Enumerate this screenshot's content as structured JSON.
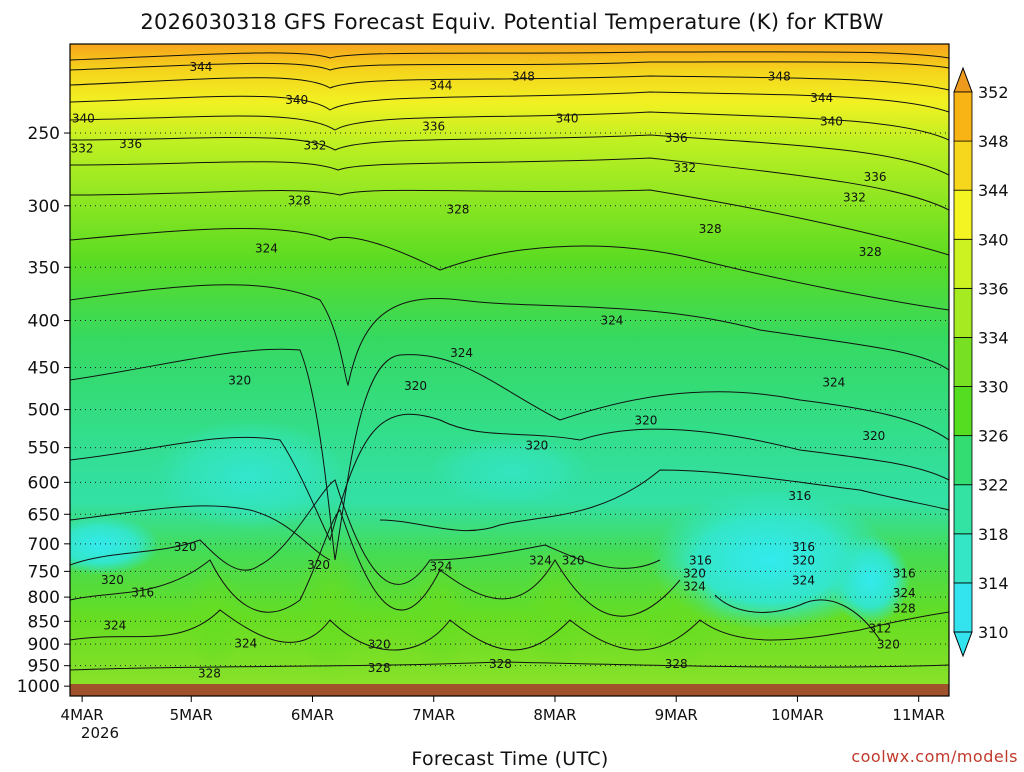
{
  "chart_data": {
    "type": "heatmap",
    "title": "2026030318 GFS Forecast Equiv. Potential Temperature (K) for KTBW",
    "xlabel": "Forecast Time (UTC)",
    "ylabel": "",
    "credit": "coolwx.com/models",
    "x_ticks": [
      "4MAR",
      "5MAR",
      "6MAR",
      "7MAR",
      "8MAR",
      "9MAR",
      "10MAR",
      "11MAR"
    ],
    "x_tick_days": [
      0.1,
      1.0,
      2.0,
      3.0,
      4.0,
      5.0,
      6.0,
      7.0
    ],
    "x_year": "2026",
    "xlim_days": [
      0,
      7.25
    ],
    "y_ticks": [
      "250",
      "300",
      "350",
      "400",
      "450",
      "500",
      "550",
      "600",
      "650",
      "700",
      "750",
      "800",
      "850",
      "900",
      "950",
      "1000"
    ],
    "y_tick_values": [
      250,
      300,
      350,
      400,
      450,
      500,
      550,
      600,
      650,
      700,
      750,
      800,
      850,
      900,
      950,
      1000
    ],
    "ylim_hpa": [
      200,
      1025
    ],
    "colorbar": {
      "levels": [
        310,
        314,
        318,
        322,
        326,
        330,
        334,
        336,
        340,
        344,
        348,
        352
      ],
      "colors": [
        "#33e4ee",
        "#35e6c6",
        "#33e3a4",
        "#33dd72",
        "#55dd22",
        "#77e022",
        "#a6ea22",
        "#ccf222",
        "#f4f422",
        "#f7d61e",
        "#f7b414",
        "#ee9a1c"
      ]
    },
    "contour_labels": [
      {
        "text": "344",
        "day": 1.08,
        "p": 212
      },
      {
        "text": "344",
        "day": 3.06,
        "p": 222
      },
      {
        "text": "348",
        "day": 3.74,
        "p": 217
      },
      {
        "text": "348",
        "day": 5.85,
        "p": 217
      },
      {
        "text": "344",
        "day": 6.2,
        "p": 229
      },
      {
        "text": "340",
        "day": 0.11,
        "p": 241
      },
      {
        "text": "340",
        "day": 1.87,
        "p": 230
      },
      {
        "text": "340",
        "day": 4.1,
        "p": 241
      },
      {
        "text": "340",
        "day": 6.28,
        "p": 243
      },
      {
        "text": "336",
        "day": 3.0,
        "p": 246
      },
      {
        "text": "336",
        "day": 0.5,
        "p": 257
      },
      {
        "text": "336",
        "day": 5.0,
        "p": 253
      },
      {
        "text": "336",
        "day": 6.64,
        "p": 279
      },
      {
        "text": "332",
        "day": 0.1,
        "p": 260
      },
      {
        "text": "332",
        "day": 2.02,
        "p": 258
      },
      {
        "text": "332",
        "day": 5.07,
        "p": 273
      },
      {
        "text": "332",
        "day": 6.47,
        "p": 294
      },
      {
        "text": "328",
        "day": 1.89,
        "p": 296
      },
      {
        "text": "328",
        "day": 3.2,
        "p": 303
      },
      {
        "text": "328",
        "day": 5.28,
        "p": 318
      },
      {
        "text": "328",
        "day": 6.6,
        "p": 337
      },
      {
        "text": "324",
        "day": 1.62,
        "p": 334
      },
      {
        "text": "324",
        "day": 4.47,
        "p": 400
      },
      {
        "text": "324",
        "day": 3.23,
        "p": 434
      },
      {
        "text": "324",
        "day": 6.3,
        "p": 467
      },
      {
        "text": "320",
        "day": 1.4,
        "p": 465
      },
      {
        "text": "320",
        "day": 2.85,
        "p": 471
      },
      {
        "text": "320",
        "day": 4.75,
        "p": 514
      },
      {
        "text": "320",
        "day": 3.85,
        "p": 547
      },
      {
        "text": "320",
        "day": 6.63,
        "p": 534
      },
      {
        "text": "316",
        "day": 6.02,
        "p": 621
      },
      {
        "text": "320",
        "day": 0.95,
        "p": 706
      },
      {
        "text": "320",
        "day": 2.05,
        "p": 738
      },
      {
        "text": "324",
        "day": 3.06,
        "p": 741
      },
      {
        "text": "324",
        "day": 3.88,
        "p": 730
      },
      {
        "text": "320",
        "day": 4.15,
        "p": 730
      },
      {
        "text": "316",
        "day": 5.2,
        "p": 730
      },
      {
        "text": "320",
        "day": 5.15,
        "p": 754
      },
      {
        "text": "324",
        "day": 5.15,
        "p": 779
      },
      {
        "text": "316",
        "day": 6.05,
        "p": 706
      },
      {
        "text": "320",
        "day": 6.05,
        "p": 730
      },
      {
        "text": "324",
        "day": 6.05,
        "p": 767
      },
      {
        "text": "316",
        "day": 6.88,
        "p": 754
      },
      {
        "text": "324",
        "day": 6.88,
        "p": 792
      },
      {
        "text": "328",
        "day": 6.88,
        "p": 823
      },
      {
        "text": "312",
        "day": 6.68,
        "p": 865
      },
      {
        "text": "320",
        "day": 6.75,
        "p": 901
      },
      {
        "text": "320",
        "day": 0.35,
        "p": 766
      },
      {
        "text": "316",
        "day": 0.6,
        "p": 791
      },
      {
        "text": "324",
        "day": 0.37,
        "p": 859
      },
      {
        "text": "324",
        "day": 1.45,
        "p": 899
      },
      {
        "text": "328",
        "day": 1.15,
        "p": 969
      },
      {
        "text": "320",
        "day": 2.55,
        "p": 901
      },
      {
        "text": "328",
        "day": 2.55,
        "p": 956
      },
      {
        "text": "328",
        "day": 3.55,
        "p": 946
      },
      {
        "text": "328",
        "day": 5.0,
        "p": 946
      }
    ]
  }
}
